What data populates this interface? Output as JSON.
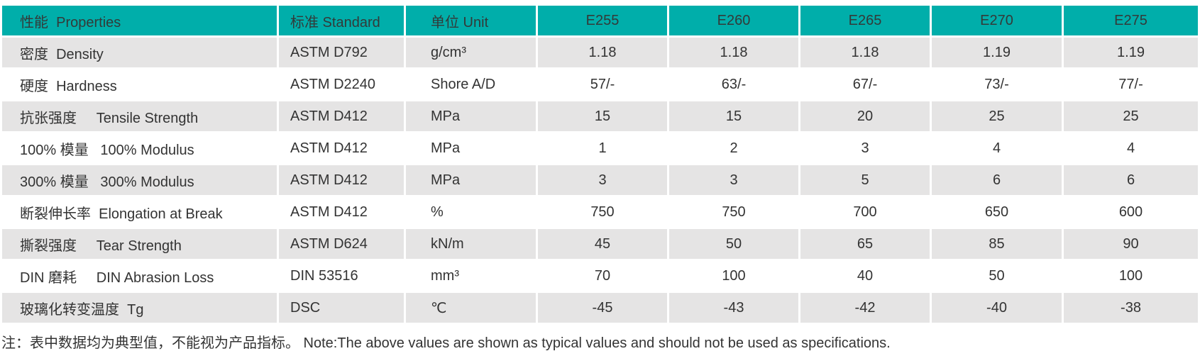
{
  "table": {
    "header": {
      "properties": "性能  Properties",
      "standard": "标准 Standard",
      "unit": "单位 Unit",
      "grades": [
        "E255",
        "E260",
        "E265",
        "E270",
        "E275"
      ]
    },
    "rows": [
      {
        "property": "密度  Density",
        "standard": "ASTM D792",
        "unit": "g/cm³",
        "values": [
          "1.18",
          "1.18",
          "1.18",
          "1.19",
          "1.19"
        ]
      },
      {
        "property": "硬度  Hardness",
        "standard": "ASTM D2240",
        "unit": "Shore A/D",
        "values": [
          "57/-",
          "63/-",
          "67/-",
          "73/-",
          "77/-"
        ]
      },
      {
        "property": "抗张强度     Tensile Strength",
        "standard": "ASTM D412",
        "unit": "MPa",
        "values": [
          "15",
          "15",
          "20",
          "25",
          "25"
        ]
      },
      {
        "property": "100% 模量   100% Modulus",
        "standard": "ASTM D412",
        "unit": "MPa",
        "values": [
          "1",
          "2",
          "3",
          "4",
          "4"
        ]
      },
      {
        "property": "300% 模量   300% Modulus",
        "standard": "ASTM D412",
        "unit": "MPa",
        "values": [
          "3",
          "3",
          "5",
          "6",
          "6"
        ]
      },
      {
        "property": "断裂伸长率  Elongation at Break",
        "standard": "ASTM D412",
        "unit": "%",
        "values": [
          "750",
          "750",
          "700",
          "650",
          "600"
        ]
      },
      {
        "property": "撕裂强度     Tear Strength",
        "standard": "ASTM D624",
        "unit": "kN/m",
        "values": [
          "45",
          "50",
          "65",
          "85",
          "90"
        ]
      },
      {
        "property": "DIN 磨耗     DIN Abrasion Loss",
        "standard": "DIN 53516",
        "unit": "mm³",
        "values": [
          "70",
          "100",
          "40",
          "50",
          "100"
        ]
      },
      {
        "property": "玻璃化转变温度  Tg",
        "standard": "DSC",
        "unit": "℃",
        "values": [
          "-45",
          "-43",
          "-42",
          "-40",
          "-38"
        ]
      }
    ]
  },
  "note": "注：表中数据均为典型值，不能视为产品指标。 Note:The above values are shown as typical values and should not be used as specifications.",
  "colors": {
    "header_bg": "#00aeaa",
    "row_alt_bg": "#e5e4e4",
    "text": "#333333"
  }
}
